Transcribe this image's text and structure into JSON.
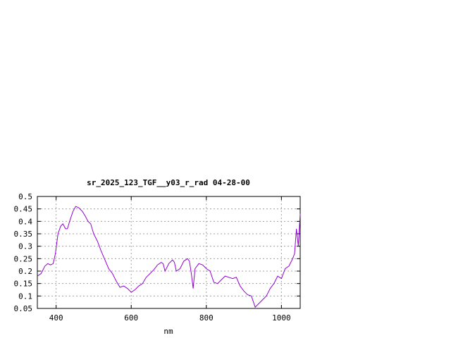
{
  "chart_data": {
    "type": "line",
    "title": "sr_2025_123_TGF__y03_r_rad 04-28-00",
    "xlabel": "nm",
    "ylabel": "",
    "xlim": [
      350,
      1050
    ],
    "ylim": [
      0.05,
      0.5
    ],
    "x_ticks": [
      400,
      600,
      800,
      1000
    ],
    "y_ticks": [
      0.05,
      0.1,
      0.15,
      0.2,
      0.25,
      0.3,
      0.35,
      0.4,
      0.45,
      0.5
    ],
    "y_tick_labels": [
      "0.05",
      "0.1",
      "0.15",
      "0.2",
      "0.25",
      "0.3",
      "0.35",
      "0.4",
      "0.45",
      "0.5"
    ],
    "grid": true,
    "line_color": "#9400d3",
    "series": [
      {
        "x": [
          350,
          360,
          370,
          378,
          385,
          392,
          398,
          405,
          412,
          418,
          425,
          430,
          438,
          445,
          452,
          460,
          470,
          478,
          485,
          492,
          500,
          510,
          520,
          530,
          540,
          550,
          560,
          570,
          580,
          590,
          600,
          610,
          620,
          630,
          640,
          650,
          660,
          670,
          680,
          685,
          690,
          700,
          710,
          715,
          720,
          730,
          740,
          750,
          755,
          760,
          765,
          770,
          780,
          790,
          800,
          810,
          820,
          830,
          840,
          850,
          860,
          870,
          880,
          890,
          900,
          910,
          920,
          930,
          940,
          950,
          960,
          970,
          980,
          990,
          1000,
          1010,
          1020,
          1030,
          1035,
          1040,
          1045,
          1050
        ],
        "y": [
          0.18,
          0.19,
          0.22,
          0.23,
          0.225,
          0.23,
          0.27,
          0.35,
          0.38,
          0.39,
          0.37,
          0.37,
          0.41,
          0.44,
          0.46,
          0.455,
          0.44,
          0.42,
          0.4,
          0.39,
          0.35,
          0.32,
          0.28,
          0.245,
          0.21,
          0.19,
          0.16,
          0.135,
          0.14,
          0.13,
          0.115,
          0.125,
          0.14,
          0.15,
          0.175,
          0.19,
          0.205,
          0.225,
          0.235,
          0.23,
          0.2,
          0.23,
          0.245,
          0.235,
          0.2,
          0.21,
          0.24,
          0.25,
          0.24,
          0.19,
          0.13,
          0.21,
          0.23,
          0.225,
          0.21,
          0.2,
          0.155,
          0.15,
          0.165,
          0.18,
          0.175,
          0.17,
          0.175,
          0.14,
          0.12,
          0.105,
          0.1,
          0.055,
          0.07,
          0.085,
          0.1,
          0.13,
          0.15,
          0.18,
          0.17,
          0.21,
          0.22,
          0.25,
          0.27,
          0.37,
          0.3,
          0.43
        ]
      }
    ]
  }
}
